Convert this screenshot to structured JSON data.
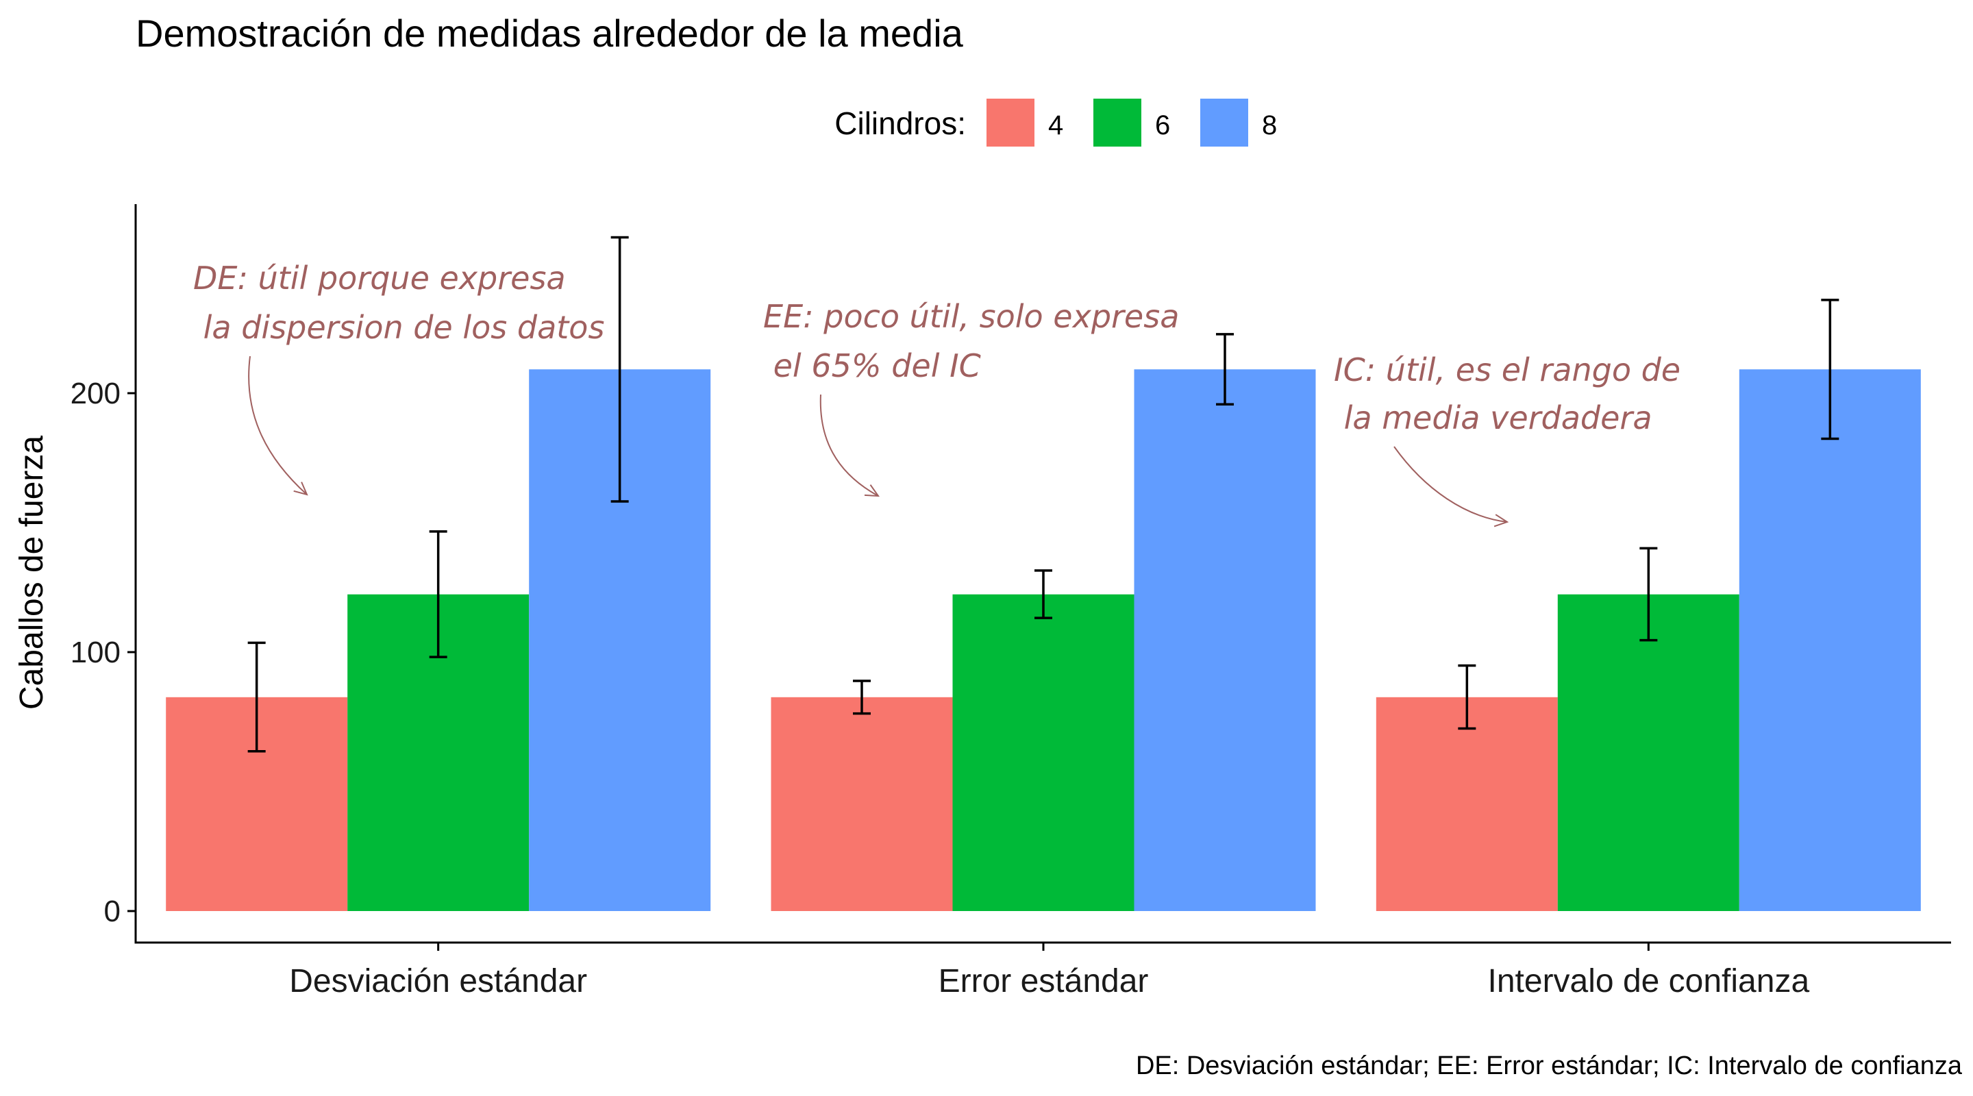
{
  "chart_data": {
    "type": "bar",
    "title": "Demostración de medidas alrededor de la media",
    "xlabel": "",
    "ylabel": "Caballos de fuerza",
    "caption": "DE: Desviación estándar; EE: Error estándar; IC: Intervalo de confianza",
    "legend": {
      "title": "Cilindros:",
      "position": "top",
      "entries": [
        "4",
        "6",
        "8"
      ]
    },
    "categories": [
      "Desviación estándar",
      "Error estándar",
      "Intervalo de confianza"
    ],
    "y_ticks": [
      "0",
      "100",
      "200"
    ],
    "ylim": [
      -12,
      274
    ],
    "grid": false,
    "series": [
      {
        "name": "4",
        "color": "#F8766D",
        "values": [
          82.6,
          82.6,
          82.6
        ],
        "error_low": [
          61.7,
          76.3,
          70.5
        ],
        "error_high": [
          103.6,
          88.9,
          94.8
        ]
      },
      {
        "name": "6",
        "color": "#00BA38",
        "values": [
          122.3,
          122.3,
          122.3
        ],
        "error_low": [
          98.1,
          113.2,
          104.6
        ],
        "error_high": [
          146.6,
          131.5,
          140.1
        ]
      },
      {
        "name": "8",
        "color": "#619CFF",
        "values": [
          209.2,
          209.2,
          209.2
        ],
        "error_low": [
          158.2,
          195.7,
          182.4
        ],
        "error_high": [
          260.2,
          222.8,
          236.0
        ]
      }
    ],
    "annotations": [
      {
        "category_index": 0,
        "lines": [
          "DE: útil porque expresa",
          " la dispersion de los datos"
        ],
        "color": "#A0605F"
      },
      {
        "category_index": 1,
        "lines": [
          "EE: poco útil, solo expresa",
          " el 65% del IC"
        ],
        "color": "#A0605F"
      },
      {
        "category_index": 2,
        "lines": [
          "IC: útil, es el rango de",
          " la media verdadera"
        ],
        "color": "#A0605F"
      }
    ]
  }
}
